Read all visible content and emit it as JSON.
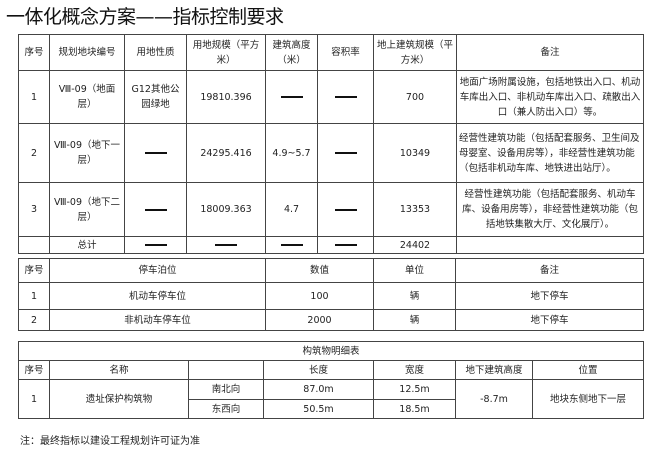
{
  "title": "一体化概念方案——指标控制要求",
  "table1": {
    "headers": [
      "序号",
      "规划地块编号",
      "用地性质",
      "用地规模（平方米）",
      "建筑高度（米）",
      "容积率",
      "地上建筑规模（平方米）",
      "备注"
    ],
    "rows": [
      {
        "no": "1",
        "plot": "Ⅷ-09（地面层）",
        "use": "G12其他公园绿地",
        "area": "19810.396",
        "height": "——",
        "far": "——",
        "gfa": "700",
        "note": "地面广场附属设施，包括地铁出入口、机动车库出入口、非机动车库出入口、疏散出入口（兼人防出入口）等。"
      },
      {
        "no": "2",
        "plot": "Ⅷ-09（地下一层）",
        "use": "——",
        "area": "24295.416",
        "height": "4.9~5.7",
        "far": "——",
        "gfa": "10349",
        "note": "经营性建筑功能（包括配套服务、卫生间及母婴室、设备用房等），非经营性建筑功能（包括非机动车库、地铁进出站厅）。"
      },
      {
        "no": "3",
        "plot": "Ⅷ-09（地下二层）",
        "use": "——",
        "area": "18009.363",
        "height": "4.7",
        "far": "——",
        "gfa": "13353",
        "note": "经营性建筑功能（包括配套服务、机动车库、设备用房等），非经营性建筑功能（包括地铁集散大厅、文化展厅）。"
      }
    ],
    "total": {
      "label": "总计",
      "gfa": "24402"
    }
  },
  "table2": {
    "headers": [
      "序号",
      "停车泊位",
      "数值",
      "单位",
      "备注"
    ],
    "rows": [
      {
        "no": "1",
        "type": "机动车停车位",
        "value": "100",
        "unit": "辆",
        "note": "地下停车"
      },
      {
        "no": "2",
        "type": "非机动车停车位",
        "value": "2000",
        "unit": "辆",
        "note": "地下停车"
      }
    ]
  },
  "table3": {
    "caption": "构筑物明细表",
    "headers": [
      "序号",
      "名称",
      "",
      "长度",
      "宽度",
      "地下建筑高度",
      "位置"
    ],
    "row": {
      "no": "1",
      "name": "遗址保护构筑物",
      "dir1": "南北向",
      "len1": "87.0m",
      "wid1": "12.5m",
      "dir2": "东西向",
      "len2": "50.5m",
      "wid2": "18.5m",
      "height": "-8.7m",
      "location": "地块东侧地下一层"
    }
  },
  "footnote": "注：最终指标以建设工程规划许可证为准"
}
